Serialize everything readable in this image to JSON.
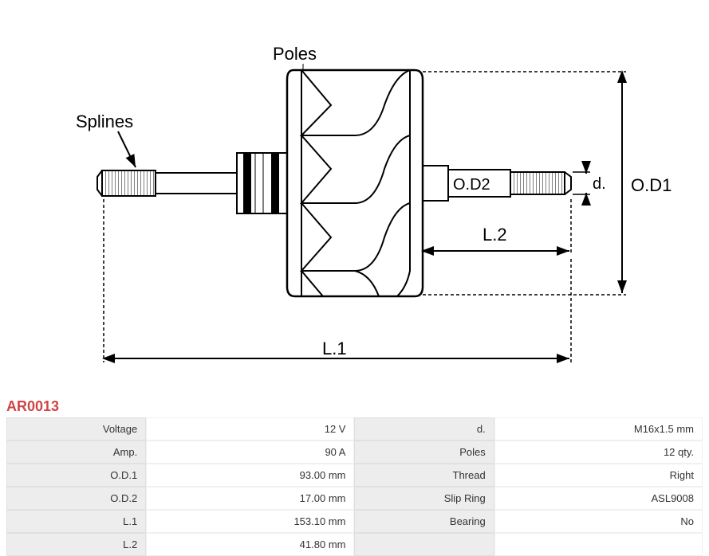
{
  "partCode": "AR0013",
  "diagram": {
    "labels": {
      "poles": "Poles",
      "splines": "Splines",
      "od1": "O.D1",
      "od2": "O.D2",
      "l1": "L.1",
      "l2": "L.2",
      "d": "d."
    },
    "colors": {
      "stroke": "#000000",
      "dashed": "#000000",
      "background": "#ffffff",
      "partCode": "#d14444"
    },
    "strokeWidth": 2
  },
  "specs": {
    "rows": [
      {
        "label1": "Voltage",
        "value1": "12 V",
        "label2": "d.",
        "value2": "M16x1.5 mm"
      },
      {
        "label1": "Amp.",
        "value1": "90 A",
        "label2": "Poles",
        "value2": "12 qty."
      },
      {
        "label1": "O.D.1",
        "value1": "93.00 mm",
        "label2": "Thread",
        "value2": "Right"
      },
      {
        "label1": "O.D.2",
        "value1": "17.00 mm",
        "label2": "Slip Ring",
        "value2": "ASL9008"
      },
      {
        "label1": "L.1",
        "value1": "153.10 mm",
        "label2": "Bearing",
        "value2": "No"
      },
      {
        "label1": "L.2",
        "value1": "41.80 mm",
        "label2": "",
        "value2": ""
      }
    ],
    "tableColors": {
      "labelBg": "#ededed",
      "valueBg": "#ffffff",
      "text": "#333333",
      "border": "#e0e0e0"
    }
  }
}
